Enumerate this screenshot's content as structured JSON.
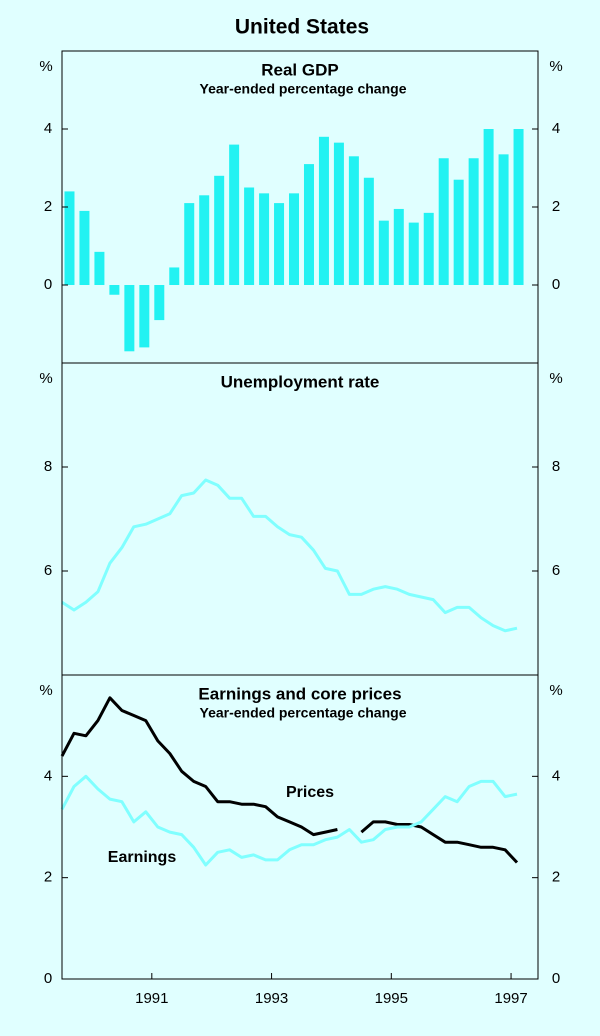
{
  "title": "United States",
  "chart_data": [
    {
      "type": "bar",
      "title": "Real GDP",
      "subtitle": "Year-ended percentage change",
      "y_unit": "%",
      "x": [
        1989.625,
        1989.875,
        1990.125,
        1990.375,
        1990.625,
        1990.875,
        1991.125,
        1991.375,
        1991.625,
        1991.875,
        1992.125,
        1992.375,
        1992.625,
        1992.875,
        1993.125,
        1993.375,
        1993.625,
        1993.875,
        1994.125,
        1994.375,
        1994.625,
        1994.875,
        1995.125,
        1995.375,
        1995.625,
        1995.875,
        1996.125,
        1996.375,
        1996.625,
        1996.875,
        1997.125
      ],
      "values": [
        2.4,
        1.9,
        0.85,
        -0.25,
        -1.7,
        -1.6,
        -0.9,
        0.45,
        2.1,
        2.3,
        2.8,
        3.6,
        2.5,
        2.35,
        2.1,
        2.35,
        3.1,
        3.8,
        3.65,
        3.3,
        2.75,
        1.65,
        1.95,
        1.6,
        1.85,
        3.25,
        2.7,
        3.25,
        4.0,
        3.35,
        4.0
      ],
      "color": "#22f2f2",
      "xlim": [
        1989.5,
        1997.45
      ],
      "ylim": [
        -2,
        6
      ],
      "yticks": [
        0,
        2,
        4
      ]
    },
    {
      "type": "line",
      "title": "Unemployment rate",
      "y_unit": "%",
      "x": [
        1989.5,
        1989.7,
        1989.9,
        1990.1,
        1990.3,
        1990.5,
        1990.7,
        1990.9,
        1991.1,
        1991.3,
        1991.5,
        1991.7,
        1991.9,
        1992.1,
        1992.3,
        1992.5,
        1992.7,
        1992.9,
        1993.1,
        1993.3,
        1993.5,
        1993.7,
        1993.9,
        1994.1,
        1994.3,
        1994.5,
        1994.7,
        1994.9,
        1995.1,
        1995.3,
        1995.5,
        1995.7,
        1995.9,
        1996.1,
        1996.3,
        1996.5,
        1996.7,
        1996.9,
        1997.1
      ],
      "series": [
        {
          "color": "#80ffff",
          "values": [
            5.4,
            5.25,
            5.4,
            5.6,
            6.15,
            6.45,
            6.85,
            6.9,
            7.0,
            7.1,
            7.45,
            7.5,
            7.75,
            7.65,
            7.4,
            7.4,
            7.05,
            7.05,
            6.85,
            6.7,
            6.65,
            6.4,
            6.05,
            6.0,
            5.55,
            5.55,
            5.65,
            5.7,
            5.65,
            5.55,
            5.5,
            5.45,
            5.2,
            5.3,
            5.3,
            5.1,
            4.95,
            4.85,
            4.9
          ]
        }
      ],
      "xlim": [
        1989.5,
        1997.45
      ],
      "ylim": [
        4,
        10
      ],
      "yticks": [
        6,
        8
      ]
    },
    {
      "type": "line",
      "title": "Earnings and core prices",
      "subtitle": "Year-ended percentage change",
      "y_unit": "%",
      "x": [
        1989.5,
        1989.7,
        1989.9,
        1990.1,
        1990.3,
        1990.5,
        1990.7,
        1990.9,
        1991.1,
        1991.3,
        1991.5,
        1991.7,
        1991.9,
        1992.1,
        1992.3,
        1992.5,
        1992.7,
        1992.9,
        1993.1,
        1993.3,
        1993.5,
        1993.7,
        1993.9,
        1994.1,
        1994.3,
        1994.5,
        1994.7,
        1994.9,
        1995.1,
        1995.3,
        1995.5,
        1995.7,
        1995.9,
        1996.1,
        1996.3,
        1996.5,
        1996.7,
        1996.9,
        1997.1
      ],
      "series": [
        {
          "name": "Prices",
          "color": "#000000",
          "values": [
            4.4,
            4.85,
            4.8,
            5.1,
            5.55,
            5.3,
            5.2,
            5.1,
            4.7,
            4.45,
            4.1,
            3.9,
            3.8,
            3.5,
            3.5,
            3.45,
            3.45,
            3.4,
            3.2,
            3.1,
            3.0,
            2.85,
            2.9,
            2.95,
            null,
            2.9,
            3.1,
            3.1,
            3.05,
            3.05,
            3.0,
            2.85,
            2.7,
            2.7,
            2.65,
            2.6,
            2.6,
            2.55,
            2.3
          ]
        },
        {
          "name": "Earnings",
          "color": "#80ffff",
          "values": [
            3.35,
            3.8,
            4.0,
            3.75,
            3.55,
            3.5,
            3.1,
            3.3,
            3.0,
            2.9,
            2.85,
            2.6,
            2.25,
            2.5,
            2.55,
            2.4,
            2.45,
            2.35,
            2.35,
            2.55,
            2.65,
            2.65,
            2.75,
            2.8,
            2.95,
            2.7,
            2.75,
            2.95,
            3.0,
            3.0,
            3.1,
            3.35,
            3.6,
            3.5,
            3.8,
            3.9,
            3.9,
            3.6,
            3.65
          ]
        }
      ],
      "xlim": [
        1989.5,
        1997.45
      ],
      "ylim": [
        0,
        6
      ],
      "yticks": [
        0,
        2,
        4
      ],
      "xticks": [
        1991,
        1993,
        1995,
        1997
      ]
    }
  ]
}
